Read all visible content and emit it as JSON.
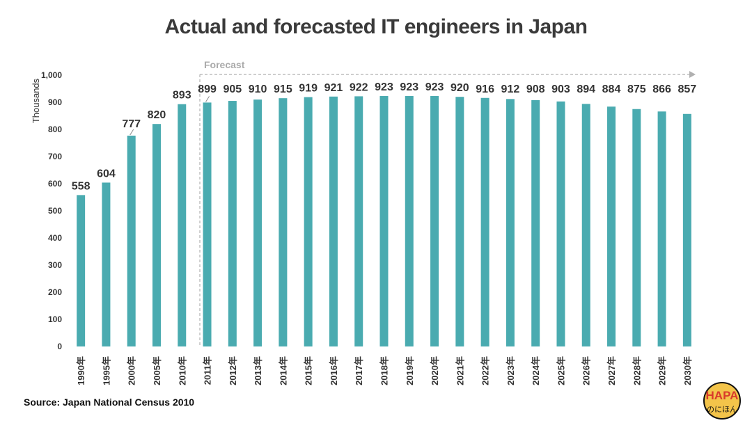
{
  "chart_data": {
    "type": "bar",
    "title": "Actual and forecasted IT engineers in Japan",
    "ylabel": "Thousands",
    "xlabel": "",
    "ylim": [
      0,
      1000
    ],
    "yticks": [
      "0",
      "100",
      "200",
      "300",
      "400",
      "500",
      "600",
      "700",
      "800",
      "900",
      "1,000"
    ],
    "categories": [
      "1990年",
      "1995年",
      "2000年",
      "2005年",
      "2010年",
      "2011年",
      "2012年",
      "2013年",
      "2014年",
      "2015年",
      "2016年",
      "2017年",
      "2018年",
      "2019年",
      "2020年",
      "2021年",
      "2022年",
      "2023年",
      "2024年",
      "2025年",
      "2026年",
      "2027年",
      "2028年",
      "2029年",
      "2030年"
    ],
    "values": [
      558,
      604,
      777,
      820,
      893,
      899,
      905,
      910,
      915,
      919,
      921,
      922,
      923,
      923,
      923,
      920,
      916,
      912,
      908,
      903,
      894,
      884,
      875,
      866,
      857
    ],
    "forecast_label": "Forecast",
    "forecast_start": "2011年",
    "bar_color": "#4aabb0",
    "grid": false,
    "legend": "none"
  },
  "source": "Source: Japan National Census 2010",
  "logo": {
    "text": "HAPA",
    "subtext": "のにほん",
    "icon": "hapa-logo-icon"
  }
}
